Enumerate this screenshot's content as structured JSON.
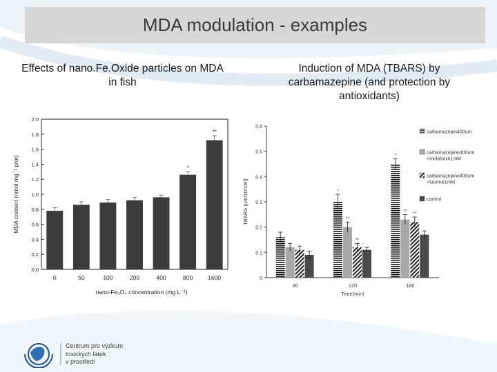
{
  "slide": {
    "title": "MDA modulation -  examples",
    "caption_left": "Effects of nano.Fe.Oxide particles on MDA in fish",
    "caption_right": "Induction of MDA (TBARS) by carbamazepine (and protection by antioxidants)"
  },
  "logo": {
    "line1": "Centrum pro výzkum",
    "line2": "toxických látek",
    "line3": "v prostředí"
  },
  "colors": {
    "title_bar": "#d6d6d6",
    "bar_dark": "#3c3c3c",
    "bar_light": "#a8a8a8",
    "bar_darkest": "#4a4a4a"
  },
  "chart_data": [
    {
      "type": "bar",
      "xlabel": "nano-Fe₃O₄ concentration (mg L⁻¹)",
      "ylabel": "MDA content (nmol mg⁻¹ prot)",
      "categories": [
        "0",
        "50",
        "100",
        "200",
        "400",
        "800",
        "1600"
      ],
      "values": [
        0.78,
        0.86,
        0.89,
        0.92,
        0.96,
        1.26,
        1.72
      ],
      "errors": [
        0.04,
        0.04,
        0.04,
        0.04,
        0.03,
        0.04,
        0.06
      ],
      "annotations": [
        "",
        "",
        "",
        "",
        "",
        "*",
        "**"
      ],
      "ylim": [
        0,
        2.0
      ],
      "yticks": [
        "0.0",
        "0.2",
        "0.4",
        "0.6",
        "0.8",
        "1.0",
        "1.2",
        "1.4",
        "1.6",
        "1.8",
        "2.0"
      ],
      "grid": false
    },
    {
      "type": "bar",
      "xlabel": "Time(min)",
      "ylabel": "TBARS (μm/10⁶cell)",
      "categories": [
        "60",
        "120",
        "180"
      ],
      "ylim": [
        0,
        0.6
      ],
      "yticks": [
        "0",
        "0.1",
        "0.2",
        "0.3",
        "0.4",
        "0.5",
        "0.6"
      ],
      "legend_position": "top-right",
      "series": [
        {
          "name": "carbamazepin400um",
          "values": [
            0.16,
            0.3,
            0.45
          ],
          "errors": [
            0.02,
            0.03,
            0.02
          ],
          "annotations": [
            "",
            "*",
            "*"
          ]
        },
        {
          "name": "carbamazepine400um +melatonin1mM",
          "values": [
            0.12,
            0.2,
            0.23
          ],
          "errors": [
            0.015,
            0.02,
            0.02
          ],
          "annotations": [
            "",
            "**",
            "**"
          ]
        },
        {
          "name": "carbamazepine400um +taurine1mM",
          "values": [
            0.11,
            0.12,
            0.22
          ],
          "errors": [
            0.015,
            0.015,
            0.02
          ],
          "annotations": [
            "",
            "**",
            "**"
          ]
        },
        {
          "name": "control",
          "values": [
            0.09,
            0.11,
            0.17
          ],
          "errors": [
            0.015,
            0.01,
            0.015
          ],
          "annotations": [
            "",
            "",
            ""
          ]
        }
      ],
      "grid": false
    }
  ]
}
